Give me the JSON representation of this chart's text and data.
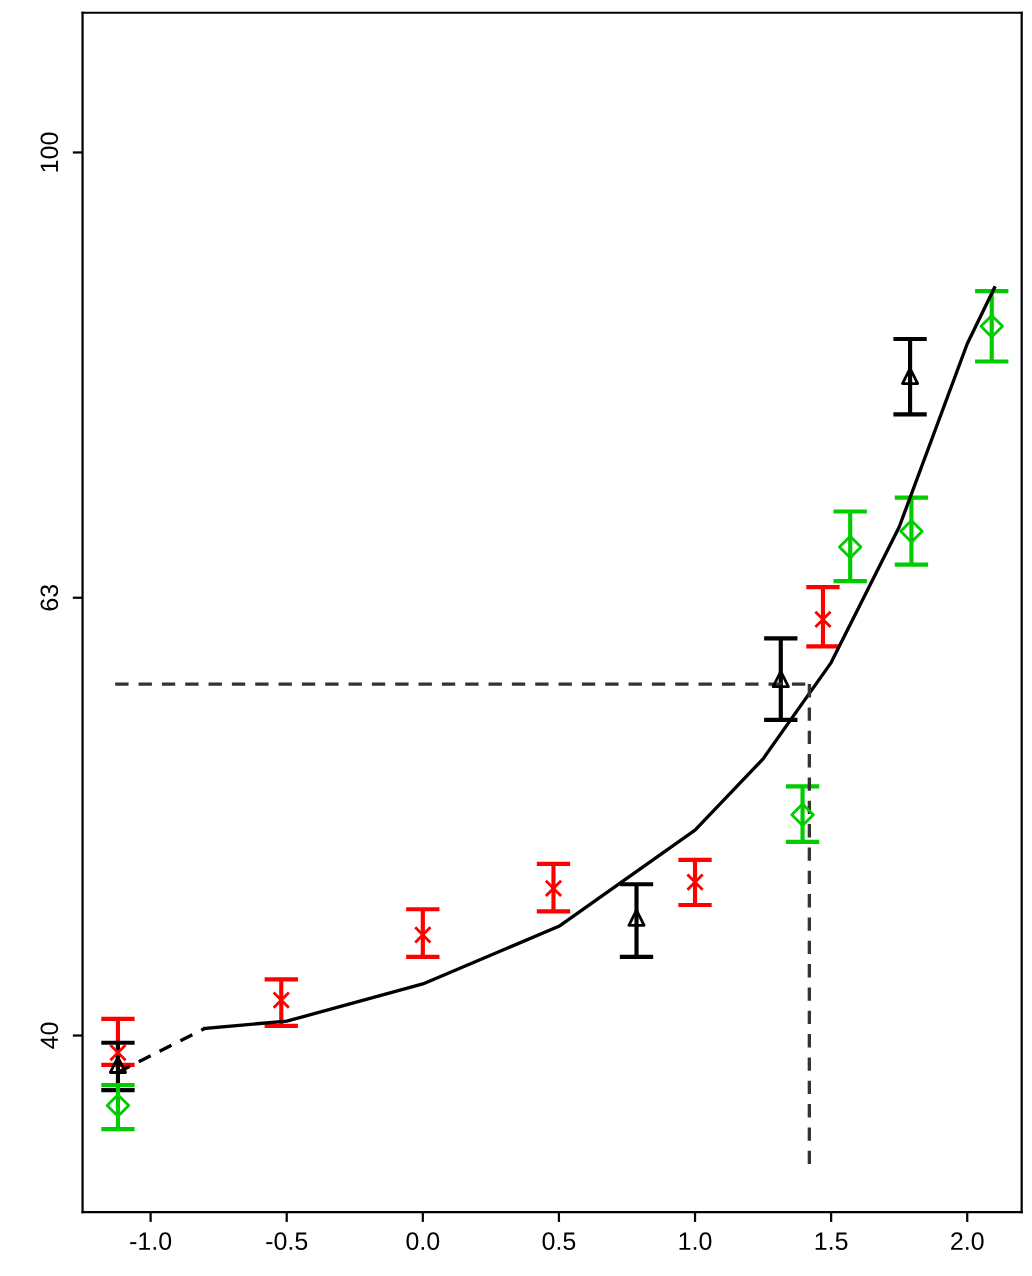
{
  "chart_data": {
    "type": "scatter",
    "log": "y",
    "grid": false,
    "xlim": [
      -1.25,
      2.2
    ],
    "ylim": [
      33.3,
      115.6
    ],
    "xticks": [
      {
        "value": -1,
        "label": "-1.0"
      },
      {
        "value": -0.5,
        "label": "-0.5"
      },
      {
        "value": 0,
        "label": "0.0"
      },
      {
        "value": 0.5,
        "label": "0.5"
      },
      {
        "value": 1,
        "label": "1.0"
      },
      {
        "value": 1.5,
        "label": "1.5"
      },
      {
        "value": 2,
        "label": "2.0"
      }
    ],
    "yticks": [
      40,
      63,
      100
    ],
    "series": [
      {
        "color": "#ff0000",
        "marker": "cross",
        "x": [
          -1.12,
          -0.52,
          0.0,
          0.48,
          1.0,
          1.47
        ],
        "values": [
          39.3,
          41.5,
          44.4,
          46.6,
          46.9,
          61.6
        ],
        "errors": [
          [
            38.8,
            40.7
          ],
          [
            40.4,
            42.4
          ],
          [
            43.4,
            45.6
          ],
          [
            45.5,
            47.8
          ],
          [
            45.8,
            48.0
          ],
          [
            59.9,
            63.7
          ]
        ]
      },
      {
        "color": "#000000",
        "marker": "triangle",
        "x": [
          -1.12,
          0.785,
          1.315,
          1.79
        ],
        "values": [
          38.8,
          45.2,
          57.9,
          79.3
        ],
        "errors": [
          [
            37.8,
            39.7
          ],
          [
            43.4,
            46.8
          ],
          [
            55.5,
            60.4
          ],
          [
            76.2,
            82.4
          ]
        ]
      },
      {
        "color": "#00cc00",
        "marker": "diamond",
        "x": [
          -1.12,
          1.395,
          1.57,
          1.795,
          2.09
        ],
        "values": [
          37.2,
          50.3,
          66.4,
          67.5,
          83.5
        ],
        "errors": [
          [
            36.3,
            38.0
          ],
          [
            48.9,
            51.8
          ],
          [
            64.1,
            68.9
          ],
          [
            65.2,
            69.9
          ],
          [
            80.5,
            86.6
          ]
        ]
      },
      {
        "type": "line",
        "color": "#000000",
        "line_style": "dashed",
        "x": [
          -1.12,
          -0.8
        ],
        "values": [
          38.5,
          40.3
        ]
      },
      {
        "type": "line",
        "color": "#000000",
        "line_style": "solid",
        "x": [
          -0.8,
          -0.5,
          0.0,
          0.5,
          1.0,
          1.25,
          1.5,
          1.75,
          2.0,
          2.1
        ],
        "values": [
          40.3,
          40.6,
          42.2,
          44.8,
          49.5,
          53.3,
          58.9,
          67.8,
          82.0,
          86.9
        ]
      },
      {
        "type": "line",
        "color": "#333333",
        "line_style": "dashed",
        "x": [
          -1.13,
          1.42
        ],
        "values": [
          57.6,
          57.6
        ]
      },
      {
        "type": "line",
        "color": "#333333",
        "line_style": "dashed",
        "x": [
          1.42,
          1.42
        ],
        "values": [
          57.6,
          34.9
        ]
      }
    ]
  }
}
